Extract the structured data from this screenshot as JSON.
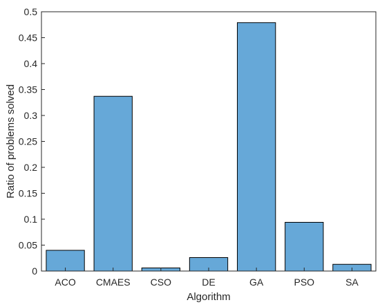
{
  "chart_data": {
    "type": "bar",
    "title": "",
    "xlabel": "Algorithm",
    "ylabel": "Ratio of problems solved",
    "categories": [
      "ACO",
      "CMAES",
      "CSO",
      "DE",
      "GA",
      "PSO",
      "SA"
    ],
    "values": [
      0.04,
      0.337,
      0.006,
      0.026,
      0.479,
      0.094,
      0.013
    ],
    "ylim": [
      0,
      0.5
    ],
    "yticks": [
      0,
      0.05,
      0.1,
      0.15,
      0.2,
      0.25,
      0.3,
      0.35,
      0.4,
      0.45,
      0.5
    ],
    "ytick_labels": [
      "0",
      "0.05",
      "0.1",
      "0.15",
      "0.2",
      "0.25",
      "0.3",
      "0.35",
      "0.4",
      "0.45",
      "0.5"
    ],
    "grid": false,
    "bar_color": "#66A8D8",
    "edge_color": "#000000"
  }
}
